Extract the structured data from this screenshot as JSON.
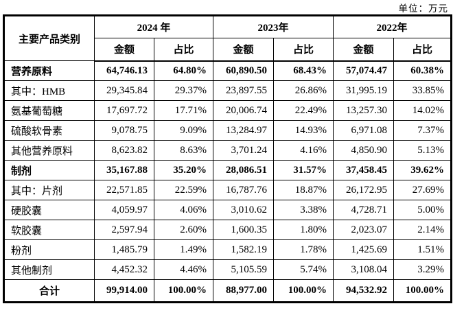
{
  "meta": {
    "unit_label": "单位：万元"
  },
  "table": {
    "category_header": "主要产品类别",
    "year_groups": [
      {
        "year": "2024 年",
        "sub": [
          "金额",
          "占比"
        ]
      },
      {
        "year": "2023年",
        "sub": [
          "金额",
          "占比"
        ]
      },
      {
        "year": "2022年",
        "sub": [
          "金额",
          "占比"
        ]
      }
    ],
    "rows": [
      {
        "category": "营养原料",
        "bold": true,
        "total": false,
        "values": [
          "64,746.13",
          "64.80%",
          "60,890.50",
          "68.43%",
          "57,074.47",
          "60.38%"
        ]
      },
      {
        "category": "其中：HMB",
        "bold": false,
        "total": false,
        "values": [
          "29,345.84",
          "29.37%",
          "23,897.55",
          "26.86%",
          "31,995.19",
          "33.85%"
        ]
      },
      {
        "category": "氨基葡萄糖",
        "bold": false,
        "total": false,
        "values": [
          "17,697.72",
          "17.71%",
          "20,006.74",
          "22.49%",
          "13,257.30",
          "14.02%"
        ]
      },
      {
        "category": "硫酸软骨素",
        "bold": false,
        "total": false,
        "values": [
          "9,078.75",
          "9.09%",
          "13,284.97",
          "14.93%",
          "6,971.08",
          "7.37%"
        ]
      },
      {
        "category": "其他营养原料",
        "bold": false,
        "total": false,
        "values": [
          "8,623.82",
          "8.63%",
          "3,701.24",
          "4.16%",
          "4,850.90",
          "5.13%"
        ]
      },
      {
        "category": "制剂",
        "bold": true,
        "total": false,
        "values": [
          "35,167.88",
          "35.20%",
          "28,086.51",
          "31.57%",
          "37,458.45",
          "39.62%"
        ]
      },
      {
        "category": "其中：片剂",
        "bold": false,
        "total": false,
        "values": [
          "22,571.85",
          "22.59%",
          "16,787.76",
          "18.87%",
          "26,172.95",
          "27.69%"
        ]
      },
      {
        "category": "硬胶囊",
        "bold": false,
        "total": false,
        "values": [
          "4,059.97",
          "4.06%",
          "3,010.62",
          "3.38%",
          "4,728.71",
          "5.00%"
        ]
      },
      {
        "category": "软胶囊",
        "bold": false,
        "total": false,
        "values": [
          "2,597.94",
          "2.60%",
          "1,600.35",
          "1.80%",
          "2,023.07",
          "2.14%"
        ]
      },
      {
        "category": "粉剂",
        "bold": false,
        "total": false,
        "values": [
          "1,485.79",
          "1.49%",
          "1,582.19",
          "1.78%",
          "1,425.69",
          "1.51%"
        ]
      },
      {
        "category": "其他制剂",
        "bold": false,
        "total": false,
        "values": [
          "4,452.32",
          "4.46%",
          "5,105.59",
          "5.74%",
          "3,108.04",
          "3.29%"
        ]
      },
      {
        "category": "合计",
        "bold": true,
        "total": true,
        "values": [
          "99,914.00",
          "100.00%",
          "88,977.00",
          "100.00%",
          "94,532.92",
          "100.00%"
        ]
      }
    ]
  }
}
